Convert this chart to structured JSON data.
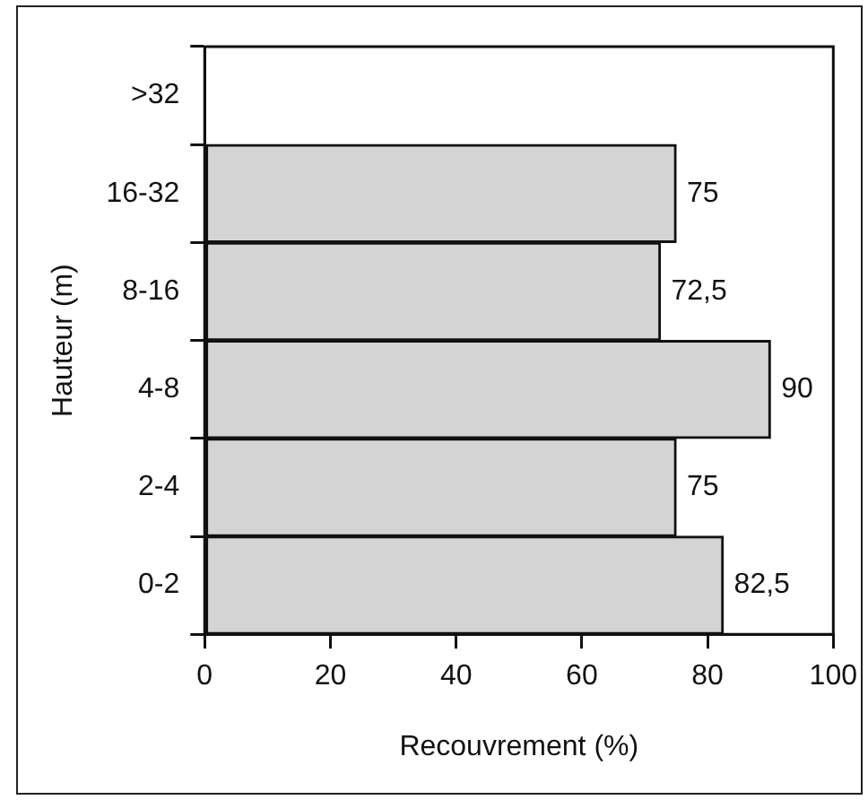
{
  "chart_data": {
    "type": "bar",
    "orientation": "horizontal",
    "categories": [
      ">32",
      "16-32",
      "8-16",
      "4-8",
      "2-4",
      "0-2"
    ],
    "values": [
      null,
      75,
      72.5,
      90,
      75,
      82.5
    ],
    "value_labels": [
      null,
      "75",
      "72,5",
      "90",
      "75",
      "82,5"
    ],
    "color": "#d4d4d4",
    "xlabel": "Recouvrement (%)",
    "ylabel": "Hauteur (m)",
    "xlim": [
      0,
      100
    ],
    "xticks": [
      0,
      20,
      40,
      60,
      80,
      100
    ],
    "grid": false,
    "legend": false
  }
}
